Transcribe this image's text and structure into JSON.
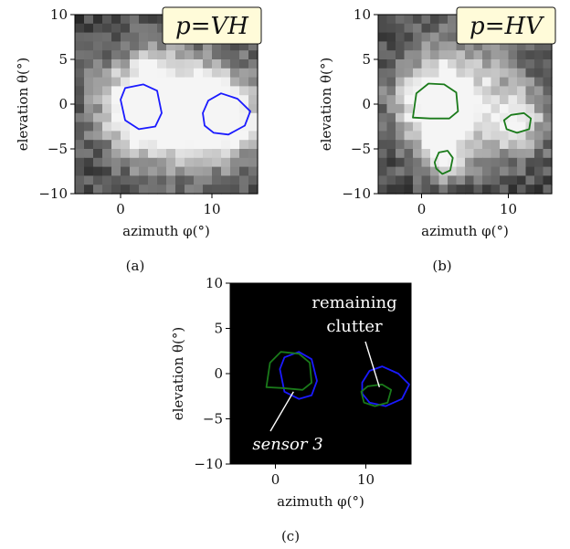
{
  "chart_data": [
    {
      "type": "heatmap",
      "panel": "(a)",
      "polarization_label": "p=VH",
      "xlabel": "azimuth φ(°)",
      "ylabel": "elevation θ(°)",
      "xlim": [
        -5,
        15
      ],
      "ylim": [
        -10,
        10
      ],
      "xticks": [
        "0",
        "10"
      ],
      "yticks": [
        "10",
        "5",
        "0",
        "−5",
        "−10"
      ],
      "grid": false,
      "colormap": "grayscale",
      "grid_shape": [
        20,
        20
      ],
      "bright_regions": [
        {
          "azimuth": 3,
          "elevation": 0,
          "spread": 3.5,
          "level": 1.0
        },
        {
          "azimuth": 11,
          "elevation": -1.5,
          "spread": 3.0,
          "level": 0.9
        },
        {
          "azimuth": 7,
          "elevation": -1,
          "spread": 5.0,
          "level": 0.45
        }
      ],
      "contours": [
        {
          "color": "#1a1aff",
          "points": [
            [
              0,
              0.5
            ],
            [
              0.5,
              1.8
            ],
            [
              2.5,
              2.2
            ],
            [
              4,
              1.5
            ],
            [
              4.5,
              -1
            ],
            [
              3.8,
              -2.5
            ],
            [
              2,
              -2.8
            ],
            [
              0.5,
              -1.8
            ],
            [
              0,
              0.5
            ]
          ]
        },
        {
          "color": "#1a1aff",
          "points": [
            [
              9,
              -1
            ],
            [
              9.6,
              0.4
            ],
            [
              11,
              1.2
            ],
            [
              12.8,
              0.6
            ],
            [
              14.2,
              -0.8
            ],
            [
              13.6,
              -2.4
            ],
            [
              11.8,
              -3.4
            ],
            [
              10.2,
              -3.2
            ],
            [
              9.2,
              -2.4
            ],
            [
              9,
              -1
            ]
          ]
        }
      ]
    },
    {
      "type": "heatmap",
      "panel": "(b)",
      "polarization_label": "p=HV",
      "xlabel": "azimuth φ(°)",
      "ylabel": "elevation θ(°)",
      "xlim": [
        -5,
        15
      ],
      "ylim": [
        -10,
        10
      ],
      "xticks": [
        "0",
        "10"
      ],
      "yticks": [
        "10",
        "5",
        "0",
        "−5",
        "−10"
      ],
      "grid": false,
      "colormap": "grayscale",
      "grid_shape": [
        20,
        20
      ],
      "bright_regions": [
        {
          "azimuth": 2,
          "elevation": 0,
          "spread": 3.5,
          "level": 0.85
        },
        {
          "azimuth": 11,
          "elevation": -2,
          "spread": 2.5,
          "level": 0.55
        },
        {
          "azimuth": 2.5,
          "elevation": -6,
          "spread": 1.8,
          "level": 0.55
        },
        {
          "azimuth": 6,
          "elevation": 1,
          "spread": 5.0,
          "level": 0.35
        }
      ],
      "contours": [
        {
          "color": "#1a7a1a",
          "points": [
            [
              -1,
              -1.5
            ],
            [
              -0.6,
              1.2
            ],
            [
              0.8,
              2.3
            ],
            [
              2.6,
              2.2
            ],
            [
              4,
              1.3
            ],
            [
              4.2,
              -0.8
            ],
            [
              3.2,
              -1.6
            ],
            [
              1,
              -1.6
            ],
            [
              -1,
              -1.5
            ]
          ]
        },
        {
          "color": "#1a7a1a",
          "points": [
            [
              9.5,
              -1.8
            ],
            [
              10.3,
              -1.2
            ],
            [
              11.8,
              -1
            ],
            [
              12.6,
              -1.6
            ],
            [
              12.4,
              -2.8
            ],
            [
              11,
              -3.2
            ],
            [
              9.8,
              -2.8
            ],
            [
              9.5,
              -1.8
            ]
          ]
        },
        {
          "color": "#1a7a1a",
          "points": [
            [
              1.5,
              -6.5
            ],
            [
              2,
              -5.4
            ],
            [
              3,
              -5.2
            ],
            [
              3.6,
              -6
            ],
            [
              3.3,
              -7.4
            ],
            [
              2.4,
              -7.8
            ],
            [
              1.7,
              -7.2
            ],
            [
              1.5,
              -6.5
            ]
          ]
        }
      ]
    },
    {
      "type": "contour",
      "panel": "(c)",
      "xlabel": "azimuth φ(°)",
      "ylabel": "elevation θ(°)",
      "xlim": [
        -5,
        15
      ],
      "ylim": [
        -10,
        10
      ],
      "xticks": [
        "0",
        "10"
      ],
      "yticks": [
        "10",
        "5",
        "0",
        "−5",
        "−10"
      ],
      "grid": false,
      "background": "#000000",
      "contours": [
        {
          "color": "#1a1aff",
          "points": [
            [
              0.5,
              0.5
            ],
            [
              1,
              1.8
            ],
            [
              2.6,
              2.4
            ],
            [
              4,
              1.6
            ],
            [
              4.6,
              -0.8
            ],
            [
              4,
              -2.4
            ],
            [
              2.6,
              -2.8
            ],
            [
              1,
              -2
            ],
            [
              0.5,
              0.5
            ]
          ]
        },
        {
          "color": "#1a7a1a",
          "points": [
            [
              -1,
              -1.5
            ],
            [
              -0.6,
              1.2
            ],
            [
              0.6,
              2.4
            ],
            [
              2.6,
              2.2
            ],
            [
              3.8,
              1.2
            ],
            [
              4,
              -1
            ],
            [
              3,
              -1.8
            ],
            [
              0.8,
              -1.6
            ],
            [
              -1,
              -1.5
            ]
          ]
        },
        {
          "color": "#1a1aff",
          "points": [
            [
              9.6,
              -1
            ],
            [
              10.4,
              0.3
            ],
            [
              11.8,
              0.8
            ],
            [
              13.6,
              0
            ],
            [
              14.8,
              -1.2
            ],
            [
              14,
              -2.8
            ],
            [
              12.2,
              -3.6
            ],
            [
              10.4,
              -3.2
            ],
            [
              9.6,
              -2.2
            ],
            [
              9.6,
              -1
            ]
          ]
        },
        {
          "color": "#1a7a1a",
          "points": [
            [
              9.5,
              -2
            ],
            [
              10.2,
              -1.4
            ],
            [
              11.8,
              -1.2
            ],
            [
              12.8,
              -1.8
            ],
            [
              12.4,
              -3.2
            ],
            [
              11,
              -3.6
            ],
            [
              9.8,
              -3.2
            ],
            [
              9.5,
              -2
            ]
          ]
        }
      ],
      "annotations": [
        {
          "text": [
            "remaining",
            "clutter"
          ],
          "style": "normal",
          "points_to": [
            11.5,
            -1.5
          ]
        },
        {
          "text": [
            "sensor 3"
          ],
          "style": "italic",
          "points_to": [
            2,
            -2
          ]
        }
      ]
    }
  ],
  "captions": [
    "(a)",
    "(b)",
    "(c)"
  ]
}
